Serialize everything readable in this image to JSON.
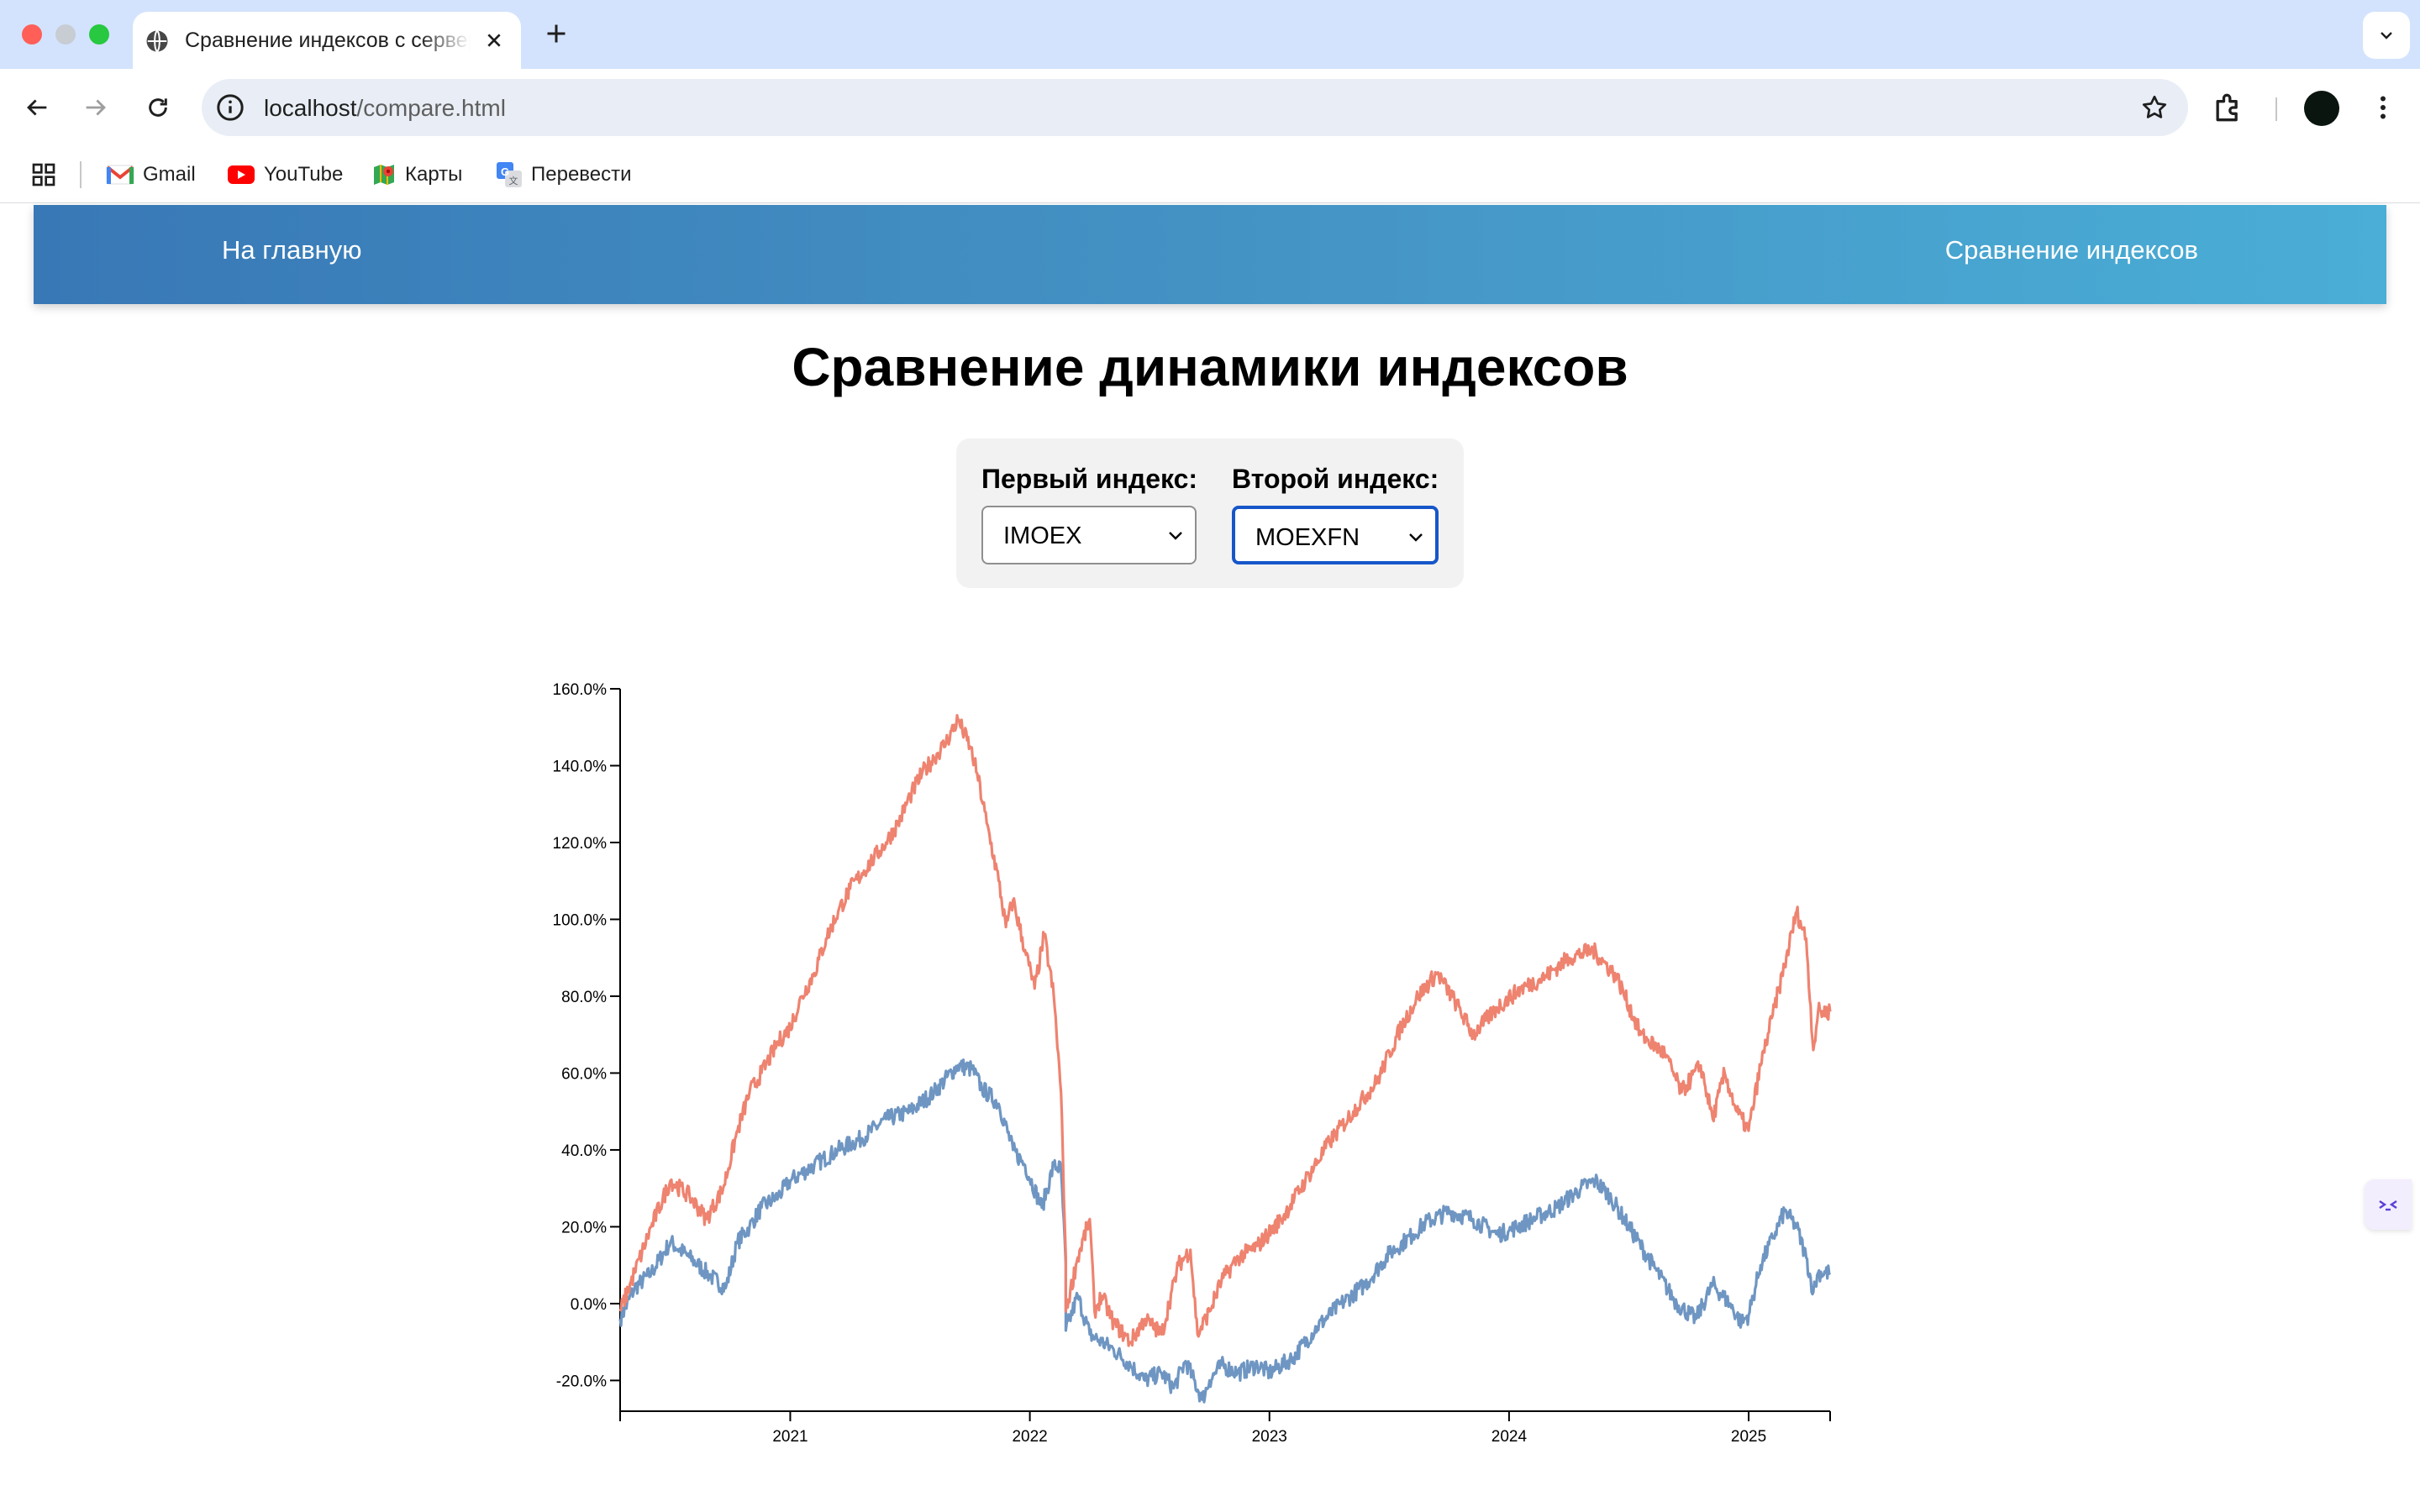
{
  "browser": {
    "tab_title": "Сравнение индексов с сервера",
    "url_host": "localhost",
    "url_path": "/compare.html",
    "bookmarks": [
      {
        "label": "Gmail",
        "icon": "gmail-icon"
      },
      {
        "label": "YouTube",
        "icon": "youtube-icon"
      },
      {
        "label": "Карты",
        "icon": "maps-icon"
      },
      {
        "label": "Перевести",
        "icon": "translate-icon"
      }
    ]
  },
  "nav": {
    "home": "На главную",
    "compare": "Сравнение индексов"
  },
  "page": {
    "title": "Сравнение динамики индексов"
  },
  "controls": {
    "first_label": "Первый индекс:",
    "first_value": "IMOEX",
    "second_label": "Второй индекс:",
    "second_value": "MOEXFN"
  },
  "colors": {
    "series_first": "#6f96c2",
    "series_second": "#ee8370",
    "header_start": "#3878b6",
    "header_end": "#4aaed6",
    "focus": "#1656c9"
  },
  "chart_data": {
    "type": "line",
    "title": "",
    "xlabel": "",
    "ylabel": "",
    "x_domain": [
      2020.29,
      2025.34
    ],
    "ylim": [
      -0.28,
      1.6
    ],
    "y_ticks": [
      -0.2,
      0.0,
      0.2,
      0.4,
      0.6,
      0.8,
      1.0,
      1.2,
      1.4,
      1.6
    ],
    "x_ticks": [
      2021,
      2022,
      2023,
      2024,
      2025
    ],
    "grid": false,
    "legend": "none",
    "series": [
      {
        "index": "IMOEX",
        "color": "#6f96c2",
        "x": [
          2020.29,
          2020.35,
          2020.42,
          2020.5,
          2020.58,
          2020.67,
          2020.73,
          2020.78,
          2020.83,
          2020.88,
          2020.95,
          2021.0,
          2021.1,
          2021.2,
          2021.3,
          2021.4,
          2021.5,
          2021.6,
          2021.7,
          2021.76,
          2021.8,
          2021.87,
          2021.93,
          2021.98,
          2022.05,
          2022.1,
          2022.13,
          2022.15,
          2022.15,
          2022.2,
          2022.25,
          2022.3,
          2022.35,
          2022.42,
          2022.48,
          2022.55,
          2022.6,
          2022.65,
          2022.72,
          2022.75,
          2022.8,
          2022.87,
          2022.95,
          2023.0,
          2023.1,
          2023.2,
          2023.3,
          2023.4,
          2023.5,
          2023.6,
          2023.65,
          2023.75,
          2023.85,
          2023.95,
          2024.0,
          2024.1,
          2024.2,
          2024.3,
          2024.36,
          2024.42,
          2024.5,
          2024.6,
          2024.7,
          2024.78,
          2024.85,
          2024.92,
          2024.97,
          2025.0,
          2025.05,
          2025.1,
          2025.15,
          2025.2,
          2025.24,
          2025.27,
          2025.29,
          2025.34
        ],
        "y": [
          -0.04,
          0.04,
          0.08,
          0.16,
          0.12,
          0.07,
          0.04,
          0.16,
          0.2,
          0.25,
          0.28,
          0.32,
          0.36,
          0.4,
          0.43,
          0.48,
          0.5,
          0.55,
          0.62,
          0.61,
          0.56,
          0.52,
          0.4,
          0.36,
          0.25,
          0.36,
          0.35,
          0.1,
          -0.07,
          0.02,
          -0.08,
          -0.1,
          -0.12,
          -0.16,
          -0.2,
          -0.18,
          -0.22,
          -0.15,
          -0.25,
          -0.2,
          -0.16,
          -0.18,
          -0.16,
          -0.18,
          -0.14,
          -0.06,
          0.0,
          0.05,
          0.13,
          0.18,
          0.21,
          0.24,
          0.22,
          0.18,
          0.19,
          0.22,
          0.25,
          0.3,
          0.32,
          0.28,
          0.2,
          0.1,
          0.0,
          -0.04,
          0.05,
          0.0,
          -0.05,
          -0.03,
          0.1,
          0.17,
          0.24,
          0.2,
          0.12,
          0.03,
          0.08,
          0.08
        ]
      },
      {
        "index": "MOEXFN",
        "color": "#ee8370",
        "x": [
          2020.29,
          2020.35,
          2020.42,
          2020.5,
          2020.58,
          2020.65,
          2020.72,
          2020.78,
          2020.83,
          2020.88,
          2020.95,
          2021.0,
          2021.05,
          2021.1,
          2021.15,
          2021.2,
          2021.25,
          2021.3,
          2021.35,
          2021.4,
          2021.45,
          2021.5,
          2021.55,
          2021.6,
          2021.65,
          2021.7,
          2021.75,
          2021.78,
          2021.82,
          2021.87,
          2021.9,
          2021.93,
          2021.98,
          2022.02,
          2022.06,
          2022.1,
          2022.13,
          2022.15,
          2022.15,
          2022.2,
          2022.25,
          2022.27,
          2022.3,
          2022.35,
          2022.42,
          2022.48,
          2022.55,
          2022.62,
          2022.67,
          2022.7,
          2022.75,
          2022.8,
          2022.87,
          2022.95,
          2023.05,
          2023.15,
          2023.25,
          2023.35,
          2023.45,
          2023.55,
          2023.62,
          2023.7,
          2023.78,
          2023.85,
          2023.95,
          2024.05,
          2024.15,
          2024.25,
          2024.35,
          2024.45,
          2024.55,
          2024.65,
          2024.72,
          2024.8,
          2024.85,
          2024.9,
          2024.95,
          2025.0,
          2025.05,
          2025.1,
          2025.15,
          2025.2,
          2025.24,
          2025.27,
          2025.29,
          2025.34
        ],
        "y": [
          -0.02,
          0.08,
          0.2,
          0.32,
          0.28,
          0.22,
          0.3,
          0.45,
          0.55,
          0.6,
          0.68,
          0.72,
          0.8,
          0.86,
          0.95,
          1.02,
          1.08,
          1.12,
          1.16,
          1.2,
          1.25,
          1.32,
          1.38,
          1.42,
          1.46,
          1.52,
          1.45,
          1.38,
          1.25,
          1.1,
          0.98,
          1.05,
          0.92,
          0.82,
          0.96,
          0.8,
          0.55,
          0.12,
          -0.02,
          0.12,
          0.22,
          -0.02,
          0.02,
          -0.05,
          -0.1,
          -0.04,
          -0.08,
          0.1,
          0.14,
          -0.08,
          -0.02,
          0.06,
          0.12,
          0.15,
          0.22,
          0.32,
          0.42,
          0.5,
          0.58,
          0.72,
          0.8,
          0.86,
          0.78,
          0.7,
          0.77,
          0.82,
          0.85,
          0.9,
          0.92,
          0.85,
          0.7,
          0.65,
          0.55,
          0.62,
          0.48,
          0.6,
          0.5,
          0.45,
          0.62,
          0.75,
          0.88,
          1.02,
          0.95,
          0.66,
          0.76,
          0.76
        ]
      }
    ]
  }
}
